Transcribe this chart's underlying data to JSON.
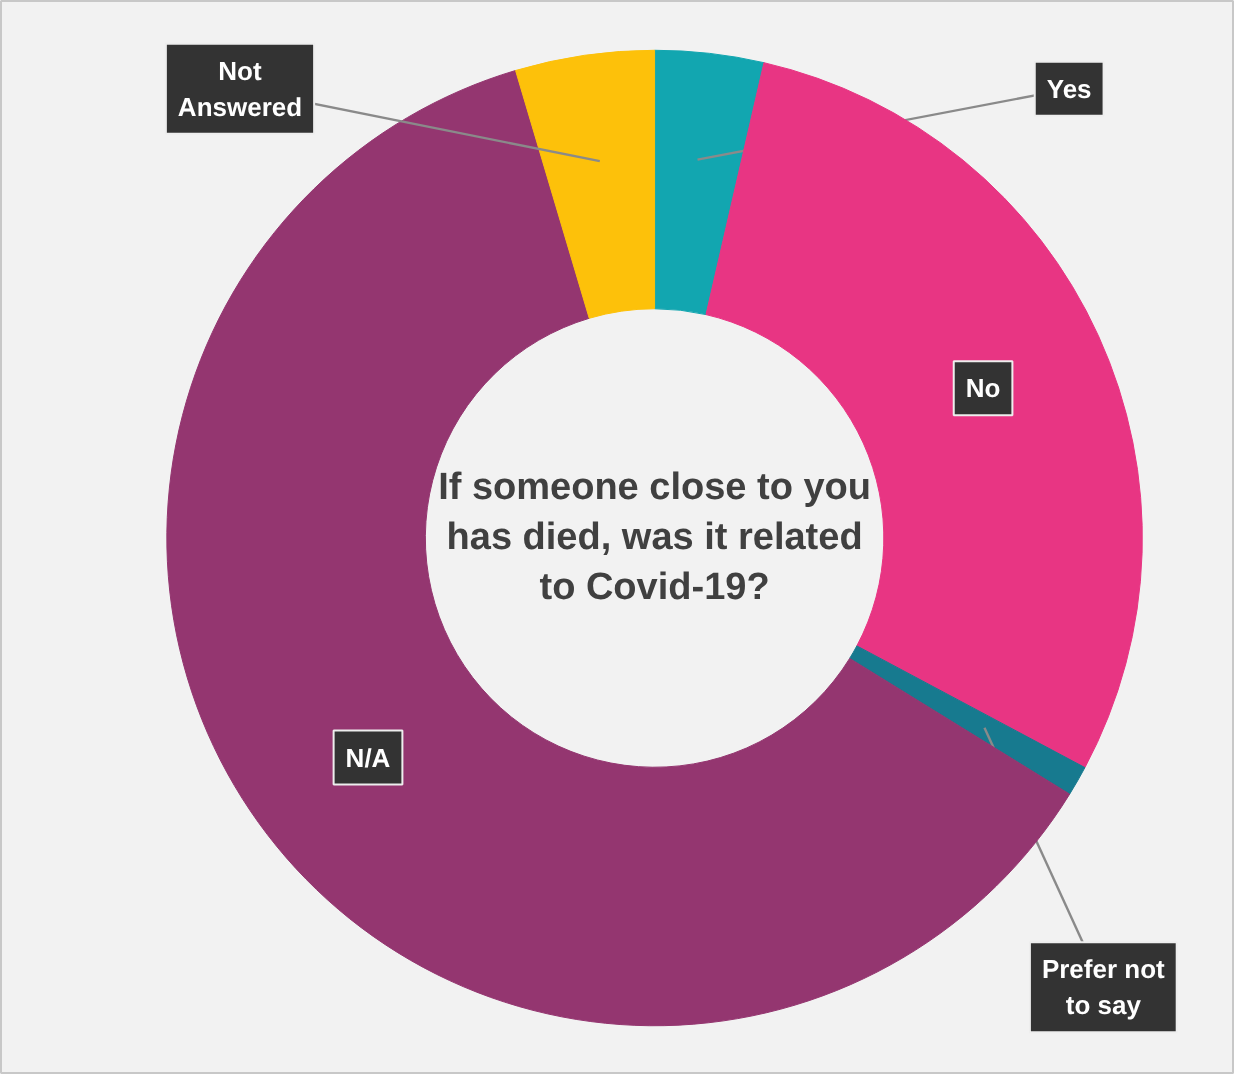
{
  "chart_data": {
    "type": "donut",
    "title": "If someone close to you has died, was it related to Covid-19?",
    "categories": [
      "Yes",
      "No",
      "Prefer not to say",
      "N/A",
      "Not Answered"
    ],
    "values": [
      3.6,
      29.2,
      1.0,
      61.6,
      4.6
    ],
    "colors": [
      "#12a6b0",
      "#e83583",
      "#177a8f",
      "#943670",
      "#fdc10a"
    ]
  }
}
